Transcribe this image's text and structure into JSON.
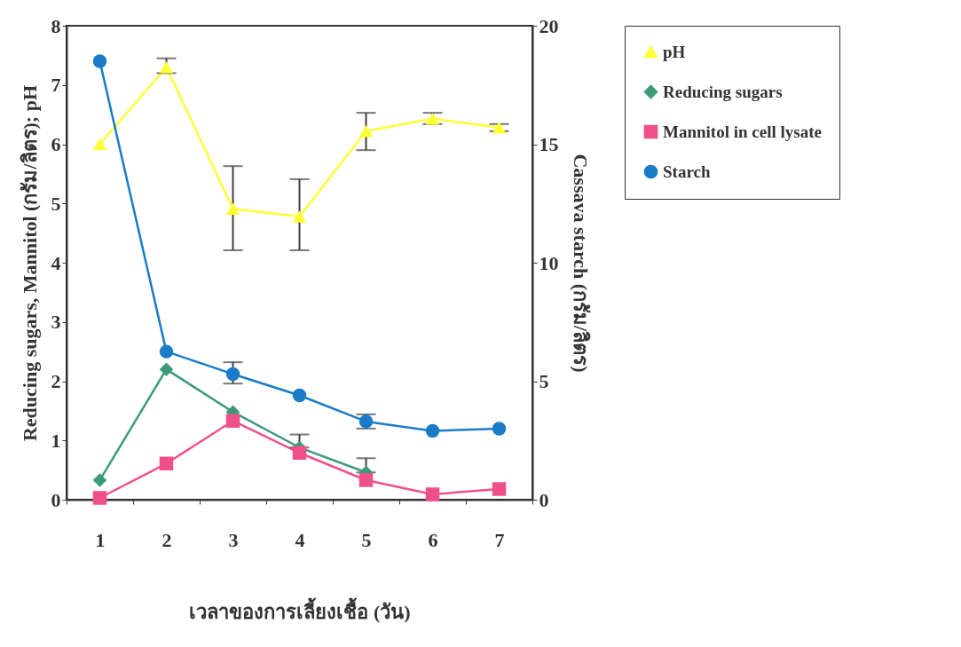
{
  "chart_data": {
    "type": "line",
    "xlabel": "เวลาของการเลี้ยงเชื้อ (วัน)",
    "ylabel": "Reducing sugars, Mannitol (กรัม/ลิตร);  pH",
    "y2label": "Cassava starch (กรัม/ลิตร)",
    "categories": [
      "1",
      "2",
      "3",
      "4",
      "5",
      "6",
      "7"
    ],
    "ylim": [
      0,
      8
    ],
    "yticks": [
      0,
      1,
      2,
      3,
      4,
      5,
      6,
      7,
      8
    ],
    "y2lim": [
      0,
      20
    ],
    "y2ticks": [
      0,
      5,
      10,
      15,
      20
    ],
    "legend": "right",
    "grid": false,
    "series": [
      {
        "name": "pH",
        "color": "#ffff33",
        "marker": "triangle",
        "values": [
          6.0,
          7.3,
          4.91,
          4.78,
          6.22,
          6.43,
          6.28
        ],
        "errors": [
          null,
          [
            7.2,
            7.45
          ],
          [
            4.21,
            5.63
          ],
          [
            4.21,
            5.41
          ],
          [
            5.9,
            6.53
          ],
          [
            6.34,
            6.53
          ],
          [
            6.22,
            6.34
          ]
        ]
      },
      {
        "name": "Reducing sugars",
        "color": "#3d9a78",
        "marker": "diamond",
        "values": [
          0.33,
          2.2,
          1.48,
          0.88,
          0.46,
          null,
          null
        ],
        "errors": [
          null,
          null,
          null,
          [
            0.88,
            1.1
          ],
          [
            0.46,
            0.7
          ],
          null,
          null
        ]
      },
      {
        "name": "Mannitol in cell lysate",
        "color": "#f0508a",
        "marker": "square",
        "values": [
          0.03,
          0.61,
          1.33,
          0.79,
          0.33,
          0.09,
          0.18
        ]
      },
      {
        "name": "Starch",
        "color": "#1a7cc8",
        "marker": "circle",
        "axis": "y2",
        "values": [
          18.5,
          6.25,
          5.3,
          4.4,
          3.3,
          2.9,
          3.0
        ],
        "errors": [
          null,
          null,
          [
            4.9,
            5.8
          ],
          null,
          [
            3.0,
            3.6
          ],
          null,
          null
        ]
      }
    ]
  }
}
